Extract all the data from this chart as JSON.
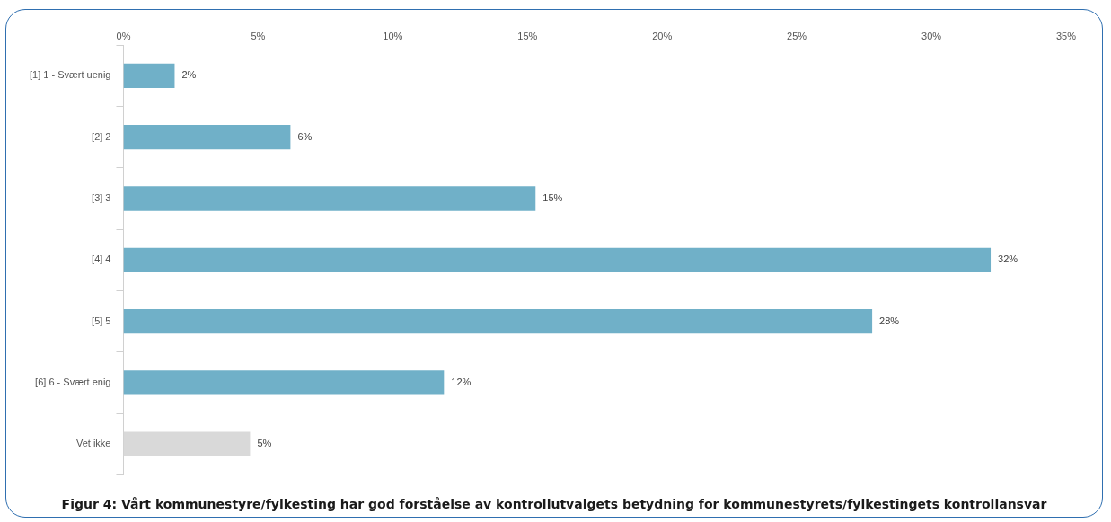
{
  "chart_data": {
    "type": "bar",
    "orientation": "horizontal",
    "title": "Figur 4: Vårt kommunestyre/fylkesting har god forståelse av kontrollutvalgets betydning for kommunestyrets/fylkestingets kontrollansvar",
    "categories": [
      "[1] 1 - Svært uenig",
      "[2] 2",
      "[3] 3",
      "[4] 4",
      "[5] 5",
      "[6] 6 - Svært enig",
      "Vet ikke"
    ],
    "values": [
      1.9,
      6.2,
      15.3,
      32.2,
      27.8,
      11.9,
      4.7
    ],
    "value_labels": [
      "2%",
      "6%",
      "15%",
      "32%",
      "28%",
      "12%",
      "5%"
    ],
    "colors": [
      "#70b0c8",
      "#70b0c8",
      "#70b0c8",
      "#70b0c8",
      "#70b0c8",
      "#70b0c8",
      "#d9d9d9"
    ],
    "xlim": [
      0,
      35
    ],
    "xticks": [
      {
        "value": 0,
        "label": "0%"
      },
      {
        "value": 5,
        "label": "5%"
      },
      {
        "value": 10,
        "label": "10%"
      },
      {
        "value": 15,
        "label": "15%"
      },
      {
        "value": 20,
        "label": "20%"
      },
      {
        "value": 25,
        "label": "25%"
      },
      {
        "value": 30,
        "label": "30%"
      },
      {
        "value": 35,
        "label": "35%"
      }
    ],
    "grid": false,
    "legend": false
  }
}
